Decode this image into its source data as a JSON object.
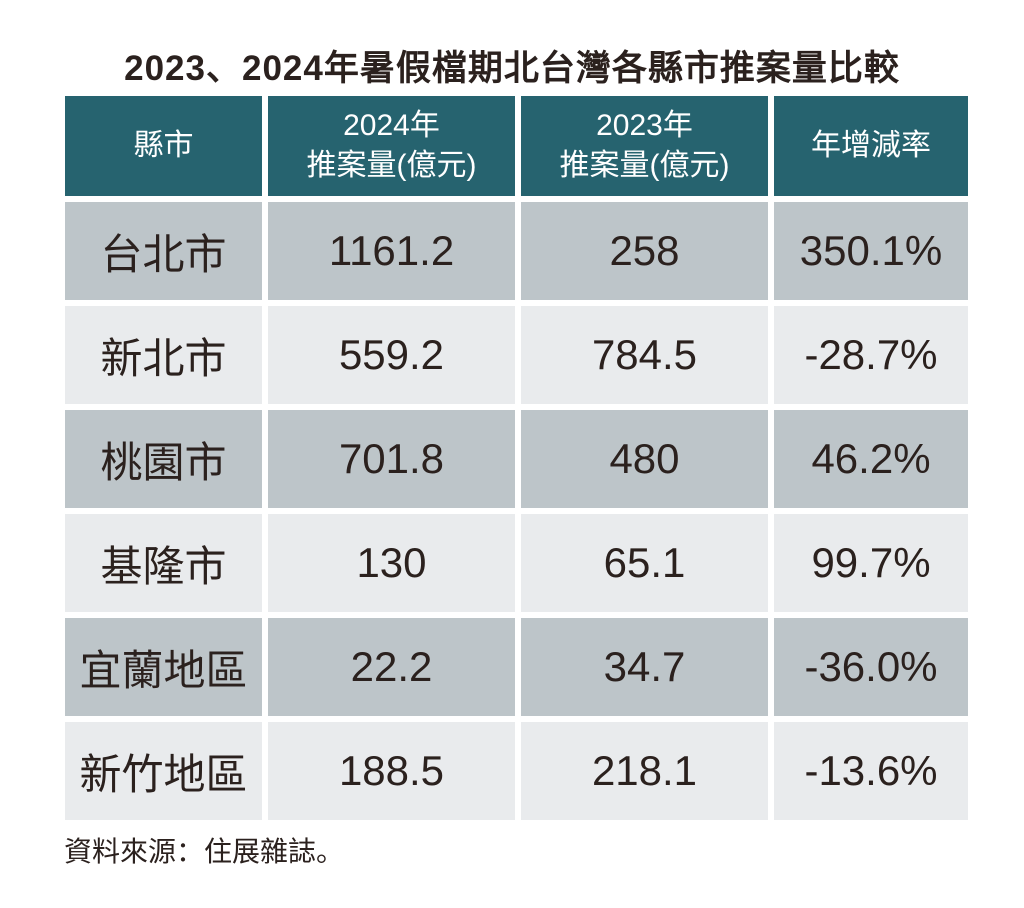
{
  "title": "2023、2024年暑假檔期北台灣各縣市推案量比較",
  "table": {
    "headers": [
      {
        "lines": [
          "縣市"
        ]
      },
      {
        "lines": [
          "2024年",
          "推案量(億元)"
        ]
      },
      {
        "lines": [
          "2023年",
          "推案量(億元)"
        ]
      },
      {
        "lines": [
          "年增減率"
        ]
      }
    ],
    "rows": [
      {
        "city": "台北市",
        "y2024": "1161.2",
        "y2023": "258",
        "yoy": "350.1%"
      },
      {
        "city": "新北市",
        "y2024": "559.2",
        "y2023": "784.5",
        "yoy": "-28.7%"
      },
      {
        "city": "桃園市",
        "y2024": "701.8",
        "y2023": "480",
        "yoy": "46.2%"
      },
      {
        "city": "基隆市",
        "y2024": "130",
        "y2023": "65.1",
        "yoy": "99.7%"
      },
      {
        "city": "宜蘭地區",
        "y2024": "22.2",
        "y2023": "34.7",
        "yoy": "-36.0%"
      },
      {
        "city": "新竹地區",
        "y2024": "188.5",
        "y2023": "218.1",
        "yoy": "-13.6%"
      }
    ]
  },
  "source": "資料來源：住展雜誌。",
  "colors": {
    "header_bg": "#26636f",
    "row_dark_bg": "#bdc5c9",
    "row_light_bg": "#e9ebed",
    "text": "#2b211e",
    "header_text": "#ffffff",
    "background": "#ffffff"
  },
  "chart_data": {
    "type": "table",
    "title": "2023、2024年暑假檔期北台灣各縣市推案量比較",
    "columns": [
      "縣市",
      "2024年推案量(億元)",
      "2023年推案量(億元)",
      "年增減率"
    ],
    "rows": [
      [
        "台北市",
        1161.2,
        258,
        "350.1%"
      ],
      [
        "新北市",
        559.2,
        784.5,
        "-28.7%"
      ],
      [
        "桃園市",
        701.8,
        480,
        "46.2%"
      ],
      [
        "基隆市",
        130,
        65.1,
        "99.7%"
      ],
      [
        "宜蘭地區",
        22.2,
        34.7,
        "-36.0%"
      ],
      [
        "新竹地區",
        188.5,
        218.1,
        "-13.6%"
      ]
    ],
    "source": "資料來源：住展雜誌。",
    "layout": {
      "header_style": "teal-band",
      "row_striping": [
        "dark",
        "light"
      ],
      "grid": "white-gaps"
    }
  }
}
